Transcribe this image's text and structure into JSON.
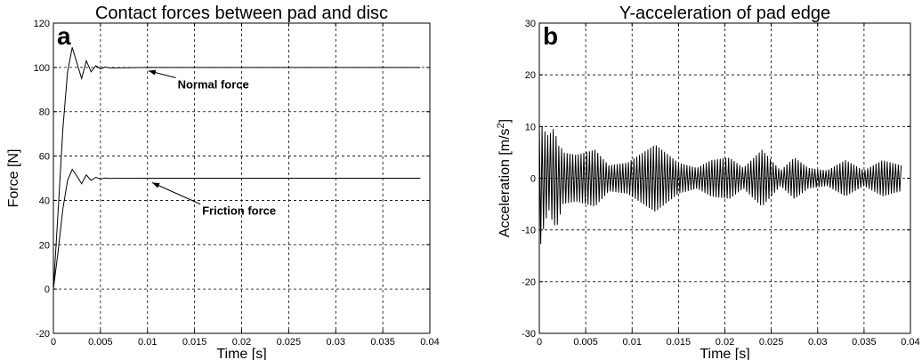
{
  "chart_data": [
    {
      "type": "line",
      "panel": "a",
      "title": "Contact forces between pad and disc",
      "xlabel": "Time [s]",
      "ylabel": "Force [N]",
      "xlim": [
        0,
        0.04
      ],
      "ylim": [
        -20,
        120
      ],
      "xticks": [
        0,
        0.005,
        0.01,
        0.015,
        0.02,
        0.025,
        0.03,
        0.035,
        0.04
      ],
      "xtick_labels": [
        "0",
        "0.005",
        "0.01",
        "0.015",
        "0.02",
        "0.025",
        "0.03",
        "0.035",
        "0.04"
      ],
      "yticks": [
        -20,
        0,
        20,
        40,
        60,
        80,
        100,
        120
      ],
      "ytick_labels": [
        "-20",
        "0",
        "20",
        "40",
        "60",
        "80",
        "100",
        "120"
      ],
      "grid": true,
      "series": [
        {
          "x": [
            0,
            0.0005,
            0.001,
            0.0015,
            0.002,
            0.0025,
            0.003,
            0.0035,
            0.004,
            0.0045,
            0.005,
            0.0055,
            0.006,
            0.01,
            0.015,
            0.02,
            0.025,
            0.03,
            0.035,
            0.039
          ],
          "y": [
            0,
            35,
            72,
            98,
            109,
            102,
            95,
            103,
            98,
            100.8,
            99.4,
            100.2,
            99.8,
            100,
            100,
            100,
            100,
            100,
            100,
            100
          ]
        },
        {
          "x": [
            0,
            0.0005,
            0.001,
            0.0015,
            0.002,
            0.0025,
            0.003,
            0.0035,
            0.004,
            0.0045,
            0.005,
            0.0055,
            0.006,
            0.01,
            0.015,
            0.02,
            0.025,
            0.03,
            0.035,
            0.039
          ],
          "y": [
            0,
            17,
            36,
            49,
            54,
            51,
            47.5,
            51.5,
            49,
            50.4,
            49.7,
            50.1,
            49.9,
            50,
            50,
            50,
            50,
            50,
            50,
            50
          ]
        }
      ],
      "annotations": [
        {
          "text": "Normal force",
          "text_x": 0.0132,
          "text_y": 90.5,
          "arrow_x": 0.0101,
          "arrow_y": 98.5
        },
        {
          "text": "Friction force",
          "text_x": 0.0158,
          "text_y": 33.5,
          "arrow_x": 0.0105,
          "arrow_y": 48
        }
      ]
    },
    {
      "type": "line",
      "panel": "b",
      "title": "Y-acceleration of pad edge",
      "xlabel": "Time [s]",
      "ylabel": "Acceleration [m/s",
      "ylabel_sup": "2",
      "ylabel_end": "]",
      "xlim": [
        0,
        0.04
      ],
      "ylim": [
        -30,
        30
      ],
      "xticks": [
        0,
        0.005,
        0.01,
        0.015,
        0.02,
        0.025,
        0.03,
        0.035,
        0.04
      ],
      "xtick_labels": [
        "0",
        "0.005",
        "0.01",
        "0.015",
        "0.02",
        "0.025",
        "0.03",
        "0.035",
        "0.04"
      ],
      "yticks": [
        -30,
        -20,
        -10,
        0,
        10,
        20,
        30
      ],
      "ytick_labels": [
        "-30",
        "-20",
        "-10",
        "0",
        "10",
        "20",
        "30"
      ],
      "grid": true,
      "series": [
        {
          "oscillation_period": 0.0003,
          "x_end": 0.039,
          "envelope_t": [
            0,
            0.0005,
            0.001,
            0.0015,
            0.002,
            0.0025,
            0.004,
            0.006,
            0.0075,
            0.0095,
            0.0125,
            0.015,
            0.017,
            0.0185,
            0.0205,
            0.022,
            0.024,
            0.026,
            0.0275,
            0.029,
            0.031,
            0.033,
            0.035,
            0.037,
            0.039
          ],
          "envelope_amp": [
            14,
            10,
            8,
            10,
            9,
            5,
            4.5,
            5.5,
            2.5,
            3,
            6.5,
            3,
            2,
            3.5,
            4,
            2,
            5.5,
            1.5,
            4,
            2,
            1.5,
            3.5,
            1.5,
            3.5,
            2.5
          ]
        }
      ]
    }
  ]
}
